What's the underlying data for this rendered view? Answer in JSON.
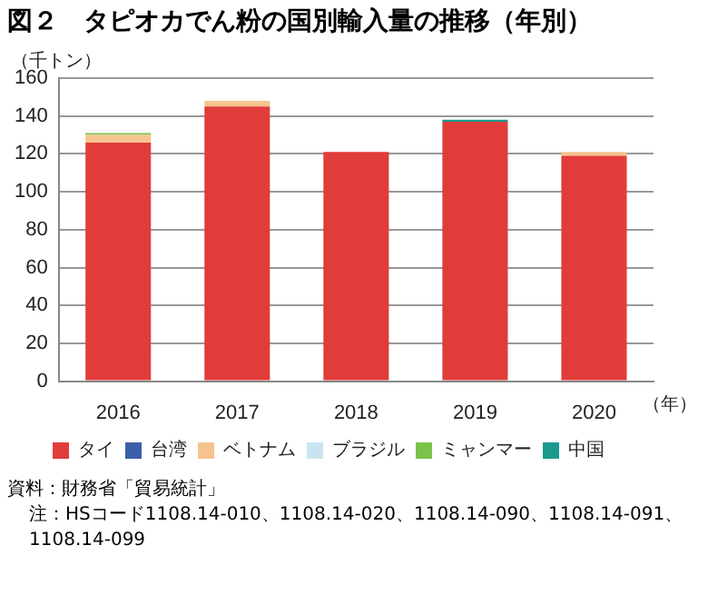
{
  "chart_data": {
    "type": "bar",
    "title": "図２　タピオカでん粉の国別輸入量の推移（年別）",
    "ylabel": "（千トン）",
    "xlabel": "（年）",
    "categories": [
      "2016",
      "2017",
      "2018",
      "2019",
      "2020"
    ],
    "stacked": true,
    "series": [
      {
        "name": "タイ",
        "color": "#e03c3a",
        "values": [
          126,
          145,
          121,
          137,
          119
        ]
      },
      {
        "name": "台湾",
        "color": "#3a5fa8",
        "values": [
          0,
          0,
          0,
          0,
          0
        ]
      },
      {
        "name": "ベトナム",
        "color": "#f5c48e",
        "values": [
          4,
          3,
          0,
          0,
          2
        ]
      },
      {
        "name": "ブラジル",
        "color": "#c9e4f0",
        "values": [
          0,
          0,
          0,
          0,
          0
        ]
      },
      {
        "name": "ミャンマー",
        "color": "#7cc24a",
        "values": [
          1,
          0,
          0,
          0,
          0
        ]
      },
      {
        "name": "中国",
        "color": "#1a9a8f",
        "values": [
          0,
          0,
          0,
          1,
          0
        ]
      }
    ],
    "ylim": [
      0,
      160
    ],
    "yticks": [
      0,
      20,
      40,
      60,
      80,
      100,
      120,
      140,
      160
    ],
    "grid": "y",
    "legend": "bottom",
    "annotations": [
      "資料：財務省「貿易統計」",
      "注：HSコード1108.14-010、1108.14-020、1108.14-090、1108.14-091、1108.14-099"
    ]
  }
}
